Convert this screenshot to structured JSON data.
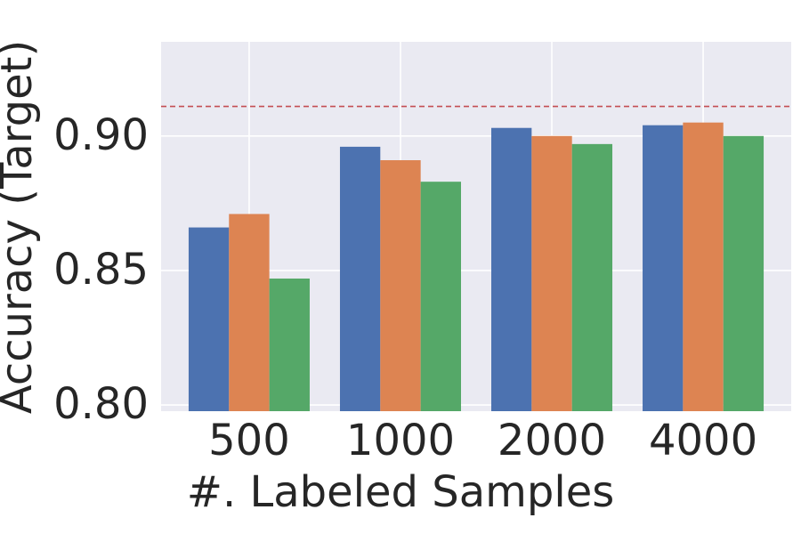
{
  "chart_data": {
    "type": "bar",
    "x_label": "#. Labeled Samples",
    "y_label": "Accuracy (Target)",
    "categories": [
      "500",
      "1000",
      "2000",
      "4000"
    ],
    "series": [
      {
        "color": "#4c72b0",
        "values": [
          0.866,
          0.896,
          0.903,
          0.904
        ]
      },
      {
        "color": "#dd8452",
        "values": [
          0.871,
          0.891,
          0.9,
          0.905
        ]
      },
      {
        "color": "#55a868",
        "values": [
          0.847,
          0.883,
          0.897,
          0.9
        ]
      }
    ],
    "reference_line": {
      "value": 0.911,
      "color": "#c44e52",
      "style": "dashed"
    },
    "ylim": [
      0.7977,
      0.935
    ],
    "yticks": [
      {
        "value": 0.8,
        "label": "0.80"
      },
      0.85,
      {
        "value": 0.9,
        "label": "0.90"
      }
    ],
    "grid": true,
    "background": "#eaeaf2"
  }
}
